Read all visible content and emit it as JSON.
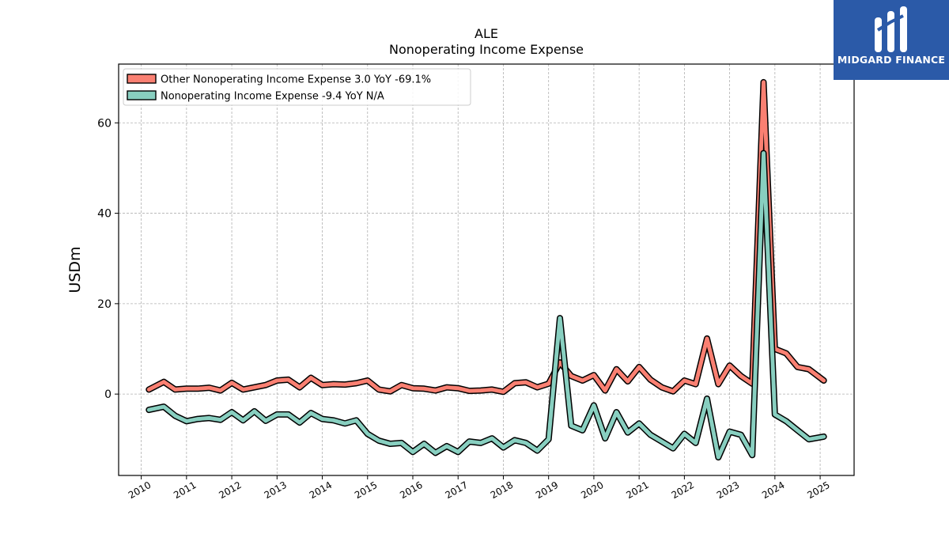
{
  "chart_data": {
    "type": "line",
    "title": "ALE",
    "subtitle": "Nonoperating Income Expense",
    "ylabel": "USDm",
    "xlabel": "",
    "xlim": [
      2009.5,
      2025.75
    ],
    "ylim": [
      -18,
      73
    ],
    "yticks": [
      0,
      20,
      40,
      60
    ],
    "xticks": [
      "2010",
      "2011",
      "2012",
      "2013",
      "2014",
      "2015",
      "2016",
      "2017",
      "2018",
      "2019",
      "2020",
      "2021",
      "2022",
      "2023",
      "2024",
      "2025"
    ],
    "grid": true,
    "legend_position": "top-left",
    "series": [
      {
        "name": "Other Nonoperating Income Expense",
        "legend_label": "Other Nonoperating Income Expense  3.0 YoY -69.1%",
        "color": "#fa8072",
        "x": [
          2010.17,
          2010.5,
          2010.75,
          2011.0,
          2011.25,
          2011.5,
          2011.75,
          2012.0,
          2012.25,
          2012.5,
          2012.75,
          2013.0,
          2013.25,
          2013.5,
          2013.75,
          2014.0,
          2014.25,
          2014.5,
          2014.75,
          2015.0,
          2015.25,
          2015.5,
          2015.75,
          2016.0,
          2016.25,
          2016.5,
          2016.75,
          2017.0,
          2017.25,
          2017.5,
          2017.75,
          2018.0,
          2018.25,
          2018.5,
          2018.75,
          2019.0,
          2019.25,
          2019.5,
          2019.75,
          2020.0,
          2020.25,
          2020.5,
          2020.75,
          2021.0,
          2021.25,
          2021.5,
          2021.75,
          2022.0,
          2022.25,
          2022.5,
          2022.75,
          2023.0,
          2023.25,
          2023.5,
          2023.75,
          2024.0,
          2024.25,
          2024.5,
          2024.75,
          2025.08
        ],
        "values": [
          1.0,
          2.7,
          1.0,
          1.2,
          1.2,
          1.4,
          0.8,
          2.5,
          1.0,
          1.5,
          2.0,
          3.0,
          3.2,
          1.5,
          3.6,
          2.0,
          2.2,
          2.1,
          2.4,
          3.0,
          1.0,
          0.6,
          2.0,
          1.3,
          1.2,
          0.8,
          1.5,
          1.3,
          0.7,
          0.8,
          1.0,
          0.5,
          2.4,
          2.6,
          1.5,
          2.3,
          7.0,
          4.0,
          3.0,
          4.2,
          0.8,
          5.5,
          2.8,
          6.0,
          3.2,
          1.5,
          0.6,
          3.0,
          2.2,
          12.3,
          2.2,
          6.3,
          4.0,
          2.3,
          69.0,
          10.0,
          9.0,
          6.0,
          5.5,
          3.0
        ]
      },
      {
        "name": "Nonoperating Income Expense",
        "legend_label": "Nonoperating Income Expense  -9.4 YoY N/A",
        "color": "#88cfc0",
        "x": [
          2010.17,
          2010.5,
          2010.75,
          2011.0,
          2011.25,
          2011.5,
          2011.75,
          2012.0,
          2012.25,
          2012.5,
          2012.75,
          2013.0,
          2013.25,
          2013.5,
          2013.75,
          2014.0,
          2014.25,
          2014.5,
          2014.75,
          2015.0,
          2015.25,
          2015.5,
          2015.75,
          2016.0,
          2016.25,
          2016.5,
          2016.75,
          2017.0,
          2017.25,
          2017.5,
          2017.75,
          2018.0,
          2018.25,
          2018.5,
          2018.75,
          2019.0,
          2019.25,
          2019.5,
          2019.75,
          2020.0,
          2020.25,
          2020.5,
          2020.75,
          2021.0,
          2021.25,
          2021.5,
          2021.75,
          2022.0,
          2022.25,
          2022.5,
          2022.75,
          2023.0,
          2023.25,
          2023.5,
          2023.75,
          2024.0,
          2024.25,
          2024.5,
          2024.75,
          2025.08
        ],
        "values": [
          -3.5,
          -2.8,
          -4.8,
          -6.0,
          -5.5,
          -5.3,
          -5.7,
          -4.0,
          -5.8,
          -3.8,
          -5.9,
          -4.5,
          -4.5,
          -6.3,
          -4.2,
          -5.5,
          -5.8,
          -6.5,
          -5.8,
          -8.8,
          -10.3,
          -11.0,
          -10.8,
          -12.8,
          -11.0,
          -13.0,
          -11.5,
          -12.8,
          -10.5,
          -10.8,
          -9.8,
          -11.8,
          -10.2,
          -10.8,
          -12.5,
          -10.0,
          16.8,
          -7.0,
          -8.0,
          -2.5,
          -9.8,
          -4.0,
          -8.5,
          -6.5,
          -9.0,
          -10.5,
          -12.0,
          -8.8,
          -10.8,
          -1.0,
          -14.0,
          -8.3,
          -9.0,
          -13.5,
          53.3,
          -4.5,
          -6.0,
          -8.0,
          -10.0,
          -9.4
        ]
      }
    ]
  },
  "logo": {
    "brand": "MIDGARD FINANCE"
  }
}
